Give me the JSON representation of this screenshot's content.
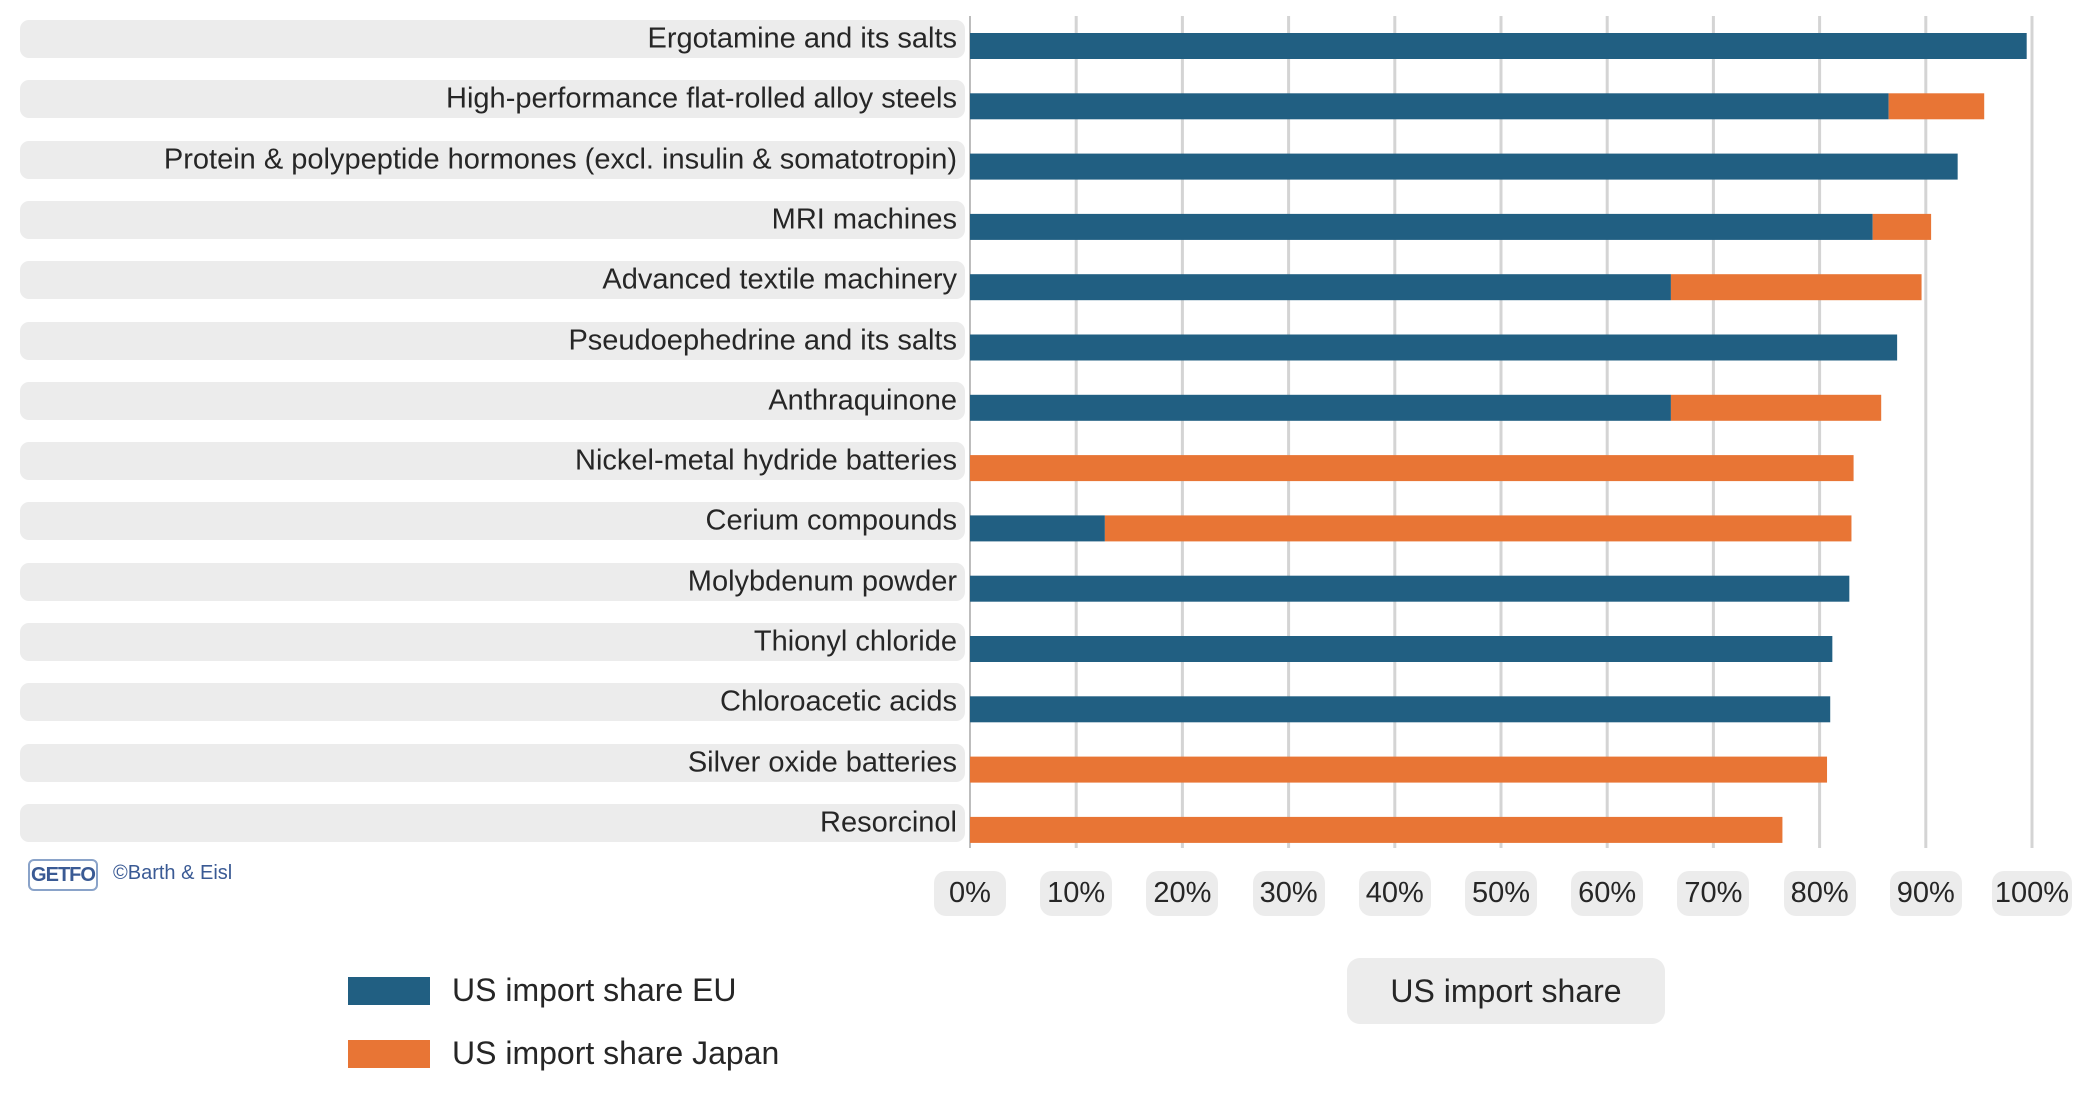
{
  "chart_data": {
    "type": "bar",
    "orientation": "horizontal",
    "stacked": true,
    "categories": [
      "Ergotamine and its salts",
      "High-performance flat-rolled alloy steels",
      "Protein & polypeptide hormones (excl. insulin & somatotropin)",
      "MRI machines",
      "Advanced textile machinery",
      "Pseudoephedrine and its salts",
      "Anthraquinone",
      "Nickel-metal hydride batteries",
      "Cerium compounds",
      "Molybdenum powder",
      "Thionyl chloride",
      "Chloroacetic acids",
      "Silver oxide batteries",
      "Resorcinol"
    ],
    "series": [
      {
        "name": "US import share EU",
        "color": "#215f82",
        "values": [
          99.5,
          86.5,
          93,
          85,
          66,
          87.3,
          66,
          0,
          12.7,
          82.8,
          81.2,
          81,
          0,
          0
        ]
      },
      {
        "name": "US import share Japan",
        "color": "#e87535",
        "values": [
          0,
          9,
          0,
          5.5,
          23.6,
          0,
          19.8,
          83.2,
          70.3,
          0,
          0,
          0,
          80.7,
          76.5
        ]
      }
    ],
    "xlim": [
      0,
      100
    ],
    "xticks": [
      "0%",
      "10%",
      "20%",
      "30%",
      "40%",
      "50%",
      "60%",
      "70%",
      "80%",
      "90%",
      "100%"
    ],
    "xlabel": "US import share",
    "ylabel": "",
    "grid": true,
    "legend_position": "bottom-left"
  },
  "footer": {
    "logo_text": "GETFO",
    "copyright": "©Barth & Eisl"
  }
}
